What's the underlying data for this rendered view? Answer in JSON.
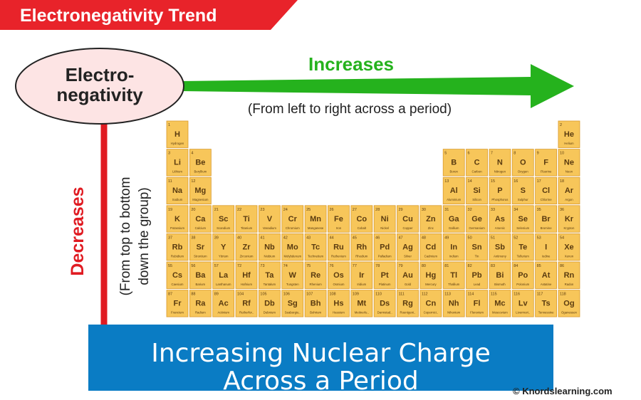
{
  "header": {
    "title": "Electronegativity Trend"
  },
  "bubble": {
    "line1": "Electro-",
    "line2": "negativity"
  },
  "horizontal": {
    "label": "Increases",
    "sublabel": "(From left to right across a period)"
  },
  "vertical": {
    "label": "Decreases",
    "sub1": "(From top to bottom",
    "sub2": "down the group)"
  },
  "banner": {
    "line1": "Increasing Nuclear Charge",
    "line2": "Across a Period"
  },
  "credit": "© Knordslearning.com",
  "colors": {
    "header_red": "#e8232a",
    "arrow_green": "#25b21d",
    "arrow_red": "#e01b22",
    "bubble_fill": "#fde4e4",
    "tile": "#f7c65a",
    "banner_blue": "#0a7cc4"
  },
  "elements": [
    {
      "n": "1",
      "s": "H",
      "name": "Hydrogen",
      "g": 1,
      "p": 1
    },
    {
      "n": "2",
      "s": "He",
      "name": "Helium",
      "g": 18,
      "p": 1
    },
    {
      "n": "3",
      "s": "Li",
      "name": "Lithium",
      "g": 1,
      "p": 2
    },
    {
      "n": "4",
      "s": "Be",
      "name": "Beryllium",
      "g": 2,
      "p": 2
    },
    {
      "n": "5",
      "s": "B",
      "name": "Boron",
      "g": 13,
      "p": 2
    },
    {
      "n": "6",
      "s": "C",
      "name": "Carbon",
      "g": 14,
      "p": 2
    },
    {
      "n": "7",
      "s": "N",
      "name": "Nitrogen",
      "g": 15,
      "p": 2
    },
    {
      "n": "8",
      "s": "O",
      "name": "Oxygen",
      "g": 16,
      "p": 2
    },
    {
      "n": "9",
      "s": "F",
      "name": "Fluorine",
      "g": 17,
      "p": 2
    },
    {
      "n": "10",
      "s": "Ne",
      "name": "Neon",
      "g": 18,
      "p": 2
    },
    {
      "n": "11",
      "s": "Na",
      "name": "Sodium",
      "g": 1,
      "p": 3
    },
    {
      "n": "12",
      "s": "Mg",
      "name": "Magnesium",
      "g": 2,
      "p": 3
    },
    {
      "n": "13",
      "s": "Al",
      "name": "Aluminium",
      "g": 13,
      "p": 3
    },
    {
      "n": "14",
      "s": "Si",
      "name": "Silicon",
      "g": 14,
      "p": 3
    },
    {
      "n": "15",
      "s": "P",
      "name": "Phosphorus",
      "g": 15,
      "p": 3
    },
    {
      "n": "16",
      "s": "S",
      "name": "Sulphur",
      "g": 16,
      "p": 3
    },
    {
      "n": "17",
      "s": "Cl",
      "name": "Chlorine",
      "g": 17,
      "p": 3
    },
    {
      "n": "18",
      "s": "Ar",
      "name": "Argon",
      "g": 18,
      "p": 3
    },
    {
      "n": "19",
      "s": "K",
      "name": "Potassium",
      "g": 1,
      "p": 4
    },
    {
      "n": "20",
      "s": "Ca",
      "name": "Calcium",
      "g": 2,
      "p": 4
    },
    {
      "n": "21",
      "s": "Sc",
      "name": "Scandium",
      "g": 3,
      "p": 4
    },
    {
      "n": "22",
      "s": "Ti",
      "name": "Titanium",
      "g": 4,
      "p": 4
    },
    {
      "n": "23",
      "s": "V",
      "name": "Vanadium",
      "g": 5,
      "p": 4
    },
    {
      "n": "24",
      "s": "Cr",
      "name": "Chromium",
      "g": 6,
      "p": 4
    },
    {
      "n": "25",
      "s": "Mn",
      "name": "Manganese",
      "g": 7,
      "p": 4
    },
    {
      "n": "26",
      "s": "Fe",
      "name": "Iron",
      "g": 8,
      "p": 4
    },
    {
      "n": "27",
      "s": "Co",
      "name": "Cobalt",
      "g": 9,
      "p": 4
    },
    {
      "n": "28",
      "s": "Ni",
      "name": "Nickel",
      "g": 10,
      "p": 4
    },
    {
      "n": "29",
      "s": "Cu",
      "name": "Copper",
      "g": 11,
      "p": 4
    },
    {
      "n": "30",
      "s": "Zn",
      "name": "Zinc",
      "g": 12,
      "p": 4
    },
    {
      "n": "31",
      "s": "Ga",
      "name": "Gallium",
      "g": 13,
      "p": 4
    },
    {
      "n": "32",
      "s": "Ge",
      "name": "Germanium",
      "g": 14,
      "p": 4
    },
    {
      "n": "33",
      "s": "As",
      "name": "Arsenic",
      "g": 15,
      "p": 4
    },
    {
      "n": "34",
      "s": "Se",
      "name": "Selenium",
      "g": 16,
      "p": 4
    },
    {
      "n": "35",
      "s": "Br",
      "name": "Bromine",
      "g": 17,
      "p": 4
    },
    {
      "n": "36",
      "s": "Kr",
      "name": "Krypton",
      "g": 18,
      "p": 4
    },
    {
      "n": "37",
      "s": "Rb",
      "name": "Rubidium",
      "g": 1,
      "p": 5
    },
    {
      "n": "38",
      "s": "Sr",
      "name": "Strontium",
      "g": 2,
      "p": 5
    },
    {
      "n": "39",
      "s": "Y",
      "name": "Yttrium",
      "g": 3,
      "p": 5
    },
    {
      "n": "40",
      "s": "Zr",
      "name": "Zirconium",
      "g": 4,
      "p": 5
    },
    {
      "n": "41",
      "s": "Nb",
      "name": "Niobium",
      "g": 5,
      "p": 5
    },
    {
      "n": "42",
      "s": "Mo",
      "name": "Molybdenum",
      "g": 6,
      "p": 5
    },
    {
      "n": "43",
      "s": "Tc",
      "name": "Technetium",
      "g": 7,
      "p": 5
    },
    {
      "n": "44",
      "s": "Ru",
      "name": "Ruthenium",
      "g": 8,
      "p": 5
    },
    {
      "n": "45",
      "s": "Rh",
      "name": "Rhodium",
      "g": 9,
      "p": 5
    },
    {
      "n": "46",
      "s": "Pd",
      "name": "Palladium",
      "g": 10,
      "p": 5
    },
    {
      "n": "47",
      "s": "Ag",
      "name": "Silver",
      "g": 11,
      "p": 5
    },
    {
      "n": "48",
      "s": "Cd",
      "name": "Cadmium",
      "g": 12,
      "p": 5
    },
    {
      "n": "49",
      "s": "In",
      "name": "Indium",
      "g": 13,
      "p": 5
    },
    {
      "n": "50",
      "s": "Sn",
      "name": "Tin",
      "g": 14,
      "p": 5
    },
    {
      "n": "51",
      "s": "Sb",
      "name": "Antimony",
      "g": 15,
      "p": 5
    },
    {
      "n": "52",
      "s": "Te",
      "name": "Tellurium",
      "g": 16,
      "p": 5
    },
    {
      "n": "53",
      "s": "I",
      "name": "Iodine",
      "g": 17,
      "p": 5
    },
    {
      "n": "54",
      "s": "Xe",
      "name": "Xenon",
      "g": 18,
      "p": 5
    },
    {
      "n": "55",
      "s": "Cs",
      "name": "Caesium",
      "g": 1,
      "p": 6
    },
    {
      "n": "56",
      "s": "Ba",
      "name": "Barium",
      "g": 2,
      "p": 6
    },
    {
      "n": "57",
      "s": "La",
      "name": "Lanthanum",
      "g": 3,
      "p": 6
    },
    {
      "n": "72",
      "s": "Hf",
      "name": "Hafnium",
      "g": 4,
      "p": 6
    },
    {
      "n": "73",
      "s": "Ta",
      "name": "Tantalum",
      "g": 5,
      "p": 6
    },
    {
      "n": "74",
      "s": "W",
      "name": "Tungsten",
      "g": 6,
      "p": 6
    },
    {
      "n": "75",
      "s": "Re",
      "name": "Rhenium",
      "g": 7,
      "p": 6
    },
    {
      "n": "76",
      "s": "Os",
      "name": "Osmium",
      "g": 8,
      "p": 6
    },
    {
      "n": "77",
      "s": "Ir",
      "name": "Iridium",
      "g": 9,
      "p": 6
    },
    {
      "n": "78",
      "s": "Pt",
      "name": "Platinum",
      "g": 10,
      "p": 6
    },
    {
      "n": "79",
      "s": "Au",
      "name": "Gold",
      "g": 11,
      "p": 6
    },
    {
      "n": "80",
      "s": "Hg",
      "name": "Mercury",
      "g": 12,
      "p": 6
    },
    {
      "n": "81",
      "s": "Tl",
      "name": "Thallium",
      "g": 13,
      "p": 6
    },
    {
      "n": "82",
      "s": "Pb",
      "name": "Lead",
      "g": 14,
      "p": 6
    },
    {
      "n": "83",
      "s": "Bi",
      "name": "Bismuth",
      "g": 15,
      "p": 6
    },
    {
      "n": "84",
      "s": "Po",
      "name": "Polonium",
      "g": 16,
      "p": 6
    },
    {
      "n": "85",
      "s": "At",
      "name": "Astatine",
      "g": 17,
      "p": 6
    },
    {
      "n": "86",
      "s": "Rn",
      "name": "Radon",
      "g": 18,
      "p": 6
    },
    {
      "n": "87",
      "s": "Fr",
      "name": "Francium",
      "g": 1,
      "p": 7
    },
    {
      "n": "88",
      "s": "Ra",
      "name": "Radium",
      "g": 2,
      "p": 7
    },
    {
      "n": "89",
      "s": "Ac",
      "name": "Actinium",
      "g": 3,
      "p": 7
    },
    {
      "n": "104",
      "s": "Rf",
      "name": "Rutherfor..",
      "g": 4,
      "p": 7
    },
    {
      "n": "105",
      "s": "Db",
      "name": "Dubnium",
      "g": 5,
      "p": 7
    },
    {
      "n": "106",
      "s": "Sg",
      "name": "Seaborgiu..",
      "g": 6,
      "p": 7
    },
    {
      "n": "107",
      "s": "Bh",
      "name": "Bohrium",
      "g": 7,
      "p": 7
    },
    {
      "n": "108",
      "s": "Hs",
      "name": "Hassium",
      "g": 8,
      "p": 7
    },
    {
      "n": "109",
      "s": "Mt",
      "name": "Meitnerlu..",
      "g": 9,
      "p": 7
    },
    {
      "n": "110",
      "s": "Ds",
      "name": "Darmstad..",
      "g": 10,
      "p": 7
    },
    {
      "n": "111",
      "s": "Rg",
      "name": "Roentgeni..",
      "g": 11,
      "p": 7
    },
    {
      "n": "112",
      "s": "Cn",
      "name": "Copernici..",
      "g": 12,
      "p": 7
    },
    {
      "n": "113",
      "s": "Nh",
      "name": "Nihonium",
      "g": 13,
      "p": 7
    },
    {
      "n": "114",
      "s": "Fl",
      "name": "Flerovium",
      "g": 14,
      "p": 7
    },
    {
      "n": "115",
      "s": "Mc",
      "name": "Moscovium",
      "g": 15,
      "p": 7
    },
    {
      "n": "116",
      "s": "Lv",
      "name": "Livermori..",
      "g": 16,
      "p": 7
    },
    {
      "n": "117",
      "s": "Ts",
      "name": "Tennessine",
      "g": 17,
      "p": 7
    },
    {
      "n": "118",
      "s": "Og",
      "name": "Oganesson",
      "g": 18,
      "p": 7
    }
  ]
}
